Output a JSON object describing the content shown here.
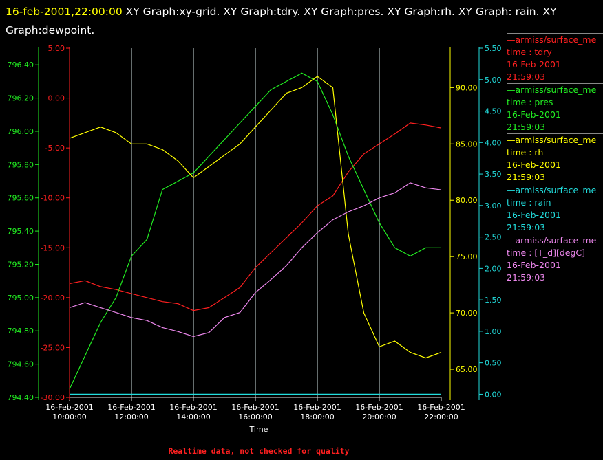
{
  "header": {
    "timestamp": "16-feb-2001,22:00:00",
    "title_rest": " XY Graph:xy-grid.  XY Graph:tdry.  XY Graph:pres.  XY Graph:rh.  XY Graph: rain.  XY Graph:dewpoint."
  },
  "footer": {
    "note": "Realtime data, not checked for quality"
  },
  "colors": {
    "tdry": "#ff2020",
    "pres": "#22ee22",
    "rh": "#ffff00",
    "rain": "#22dddd",
    "dewpoint": "#ee88ee",
    "grid": "#ccdddd"
  },
  "legend": [
    {
      "source": "—armiss/surface_me",
      "var": "time : tdry",
      "date": "16-Feb-2001",
      "time": "21:59:03",
      "color": "#ff2020"
    },
    {
      "source": "—armiss/surface_me",
      "var": "time : pres",
      "date": "16-Feb-2001",
      "time": "21:59:03",
      "color": "#22ee22"
    },
    {
      "source": "—armiss/surface_me",
      "var": "time : rh",
      "date": "16-Feb-2001",
      "time": "21:59:03",
      "color": "#ffff00"
    },
    {
      "source": "—armiss/surface_me",
      "var": "time : rain",
      "date": "16-Feb-2001",
      "time": "21:59:03",
      "color": "#22dddd"
    },
    {
      "source": "—armiss/surface_me",
      "var": "time : [T_d][degC]",
      "date": "16-Feb-2001",
      "time": "21:59:03",
      "color": "#ee88ee"
    }
  ],
  "chart_data": {
    "type": "line",
    "xlabel": "Time",
    "xlim": [
      "16-Feb-2001 10:00:00",
      "16-Feb-2001 22:00:00"
    ],
    "x_tick_labels": [
      [
        "16-Feb-2001",
        "10:00:00"
      ],
      [
        "16-Feb-2001",
        "12:00:00"
      ],
      [
        "16-Feb-2001",
        "14:00:00"
      ],
      [
        "16-Feb-2001",
        "16:00:00"
      ],
      [
        "16-Feb-2001",
        "18:00:00"
      ],
      [
        "16-Feb-2001",
        "20:00:00"
      ],
      [
        "16-Feb-2001",
        "22:00:00"
      ]
    ],
    "x_hours": [
      10,
      12,
      14,
      16,
      18,
      20,
      22
    ],
    "grid": true,
    "axes": {
      "tdry": {
        "ylim": [
          -30,
          5
        ],
        "ticks": [
          "5.00",
          "0.00",
          "-5.00",
          "-10.00",
          "-15.00",
          "-20.00",
          "-25.00",
          "-30.00"
        ]
      },
      "pres": {
        "ylim": [
          794.4,
          796.5
        ],
        "ticks": [
          "796.40",
          "796.20",
          "796.00",
          "795.80",
          "795.60",
          "795.40",
          "795.20",
          "795.00",
          "794.80",
          "794.60",
          "794.40"
        ]
      },
      "rh": {
        "ylim": [
          62.5,
          93.5
        ],
        "ticks": [
          "90.00",
          "85.00",
          "80.00",
          "75.00",
          "70.00",
          "65.00"
        ]
      },
      "rain": {
        "ylim": [
          -0.05,
          5.5
        ],
        "ticks": [
          "5.50",
          "5.00",
          "4.50",
          "4.00",
          "3.50",
          "3.00",
          "2.50",
          "2.00",
          "1.50",
          "1.00",
          "0.50",
          "0.00"
        ]
      }
    },
    "series": [
      {
        "key": "tdry",
        "axis": "tdry",
        "x": [
          "10:00",
          "10:30",
          "11:00",
          "11:30",
          "12:00",
          "12:30",
          "13:00",
          "13:30",
          "14:00",
          "14:30",
          "15:00",
          "15:30",
          "16:00",
          "16:30",
          "17:00",
          "17:30",
          "18:00",
          "18:30",
          "19:00",
          "19:30",
          "20:00",
          "20:30",
          "21:00",
          "21:30",
          "22:00"
        ],
        "values": [
          -18.6,
          -18.3,
          -18.9,
          -19.2,
          -19.6,
          -20.0,
          -20.4,
          -20.6,
          -21.3,
          -21.0,
          -20.0,
          -19.0,
          -17.0,
          -15.5,
          -14.0,
          -12.5,
          -10.8,
          -9.8,
          -7.4,
          -5.6,
          -4.6,
          -3.6,
          -2.5,
          -2.7,
          -3.0
        ]
      },
      {
        "key": "pres",
        "axis": "pres",
        "x": [
          "10:00",
          "10:30",
          "11:00",
          "11:30",
          "12:00",
          "12:30",
          "13:00",
          "13:30",
          "14:00",
          "14:30",
          "15:00",
          "15:30",
          "16:00",
          "16:30",
          "17:00",
          "17:30",
          "18:00",
          "18:30",
          "19:00",
          "19:30",
          "20:00",
          "20:30",
          "21:00",
          "21:30",
          "22:00"
        ],
        "values": [
          794.45,
          794.65,
          794.85,
          795.0,
          795.25,
          795.35,
          795.65,
          795.7,
          795.75,
          795.85,
          795.95,
          796.05,
          796.15,
          796.25,
          796.3,
          796.35,
          796.3,
          796.1,
          795.85,
          795.65,
          795.45,
          795.3,
          795.25,
          795.3,
          795.3
        ]
      },
      {
        "key": "rh",
        "axis": "rh",
        "x": [
          "10:00",
          "10:30",
          "11:00",
          "11:30",
          "12:00",
          "12:30",
          "13:00",
          "13:30",
          "14:00",
          "14:30",
          "15:00",
          "15:30",
          "16:00",
          "16:30",
          "17:00",
          "17:30",
          "18:00",
          "18:30",
          "19:00",
          "19:30",
          "20:00",
          "20:30",
          "21:00",
          "21:30",
          "22:00"
        ],
        "values": [
          85.5,
          86.0,
          86.5,
          86.0,
          85.0,
          85.0,
          84.5,
          83.5,
          82.0,
          83.0,
          84.0,
          85.0,
          86.5,
          88.0,
          89.5,
          90.0,
          91.0,
          90.0,
          77.0,
          70.0,
          67.0,
          67.5,
          66.5,
          66.0,
          66.5
        ]
      },
      {
        "key": "rain",
        "axis": "rain",
        "x": [
          "10:00",
          "22:00"
        ],
        "values": [
          0.0,
          0.0
        ]
      },
      {
        "key": "dewpoint",
        "axis": "tdry",
        "x": [
          "10:00",
          "10:30",
          "11:00",
          "11:30",
          "12:00",
          "12:30",
          "13:00",
          "13:30",
          "14:00",
          "14:30",
          "15:00",
          "15:30",
          "16:00",
          "16:30",
          "17:00",
          "17:30",
          "18:00",
          "18:30",
          "19:00",
          "19:30",
          "20:00",
          "20:30",
          "21:00",
          "21:30",
          "22:00"
        ],
        "values": [
          -21.0,
          -20.5,
          -21.0,
          -21.5,
          -22.0,
          -22.3,
          -23.0,
          -23.4,
          -23.9,
          -23.5,
          -22.0,
          -21.5,
          -19.5,
          -18.2,
          -16.8,
          -15.0,
          -13.5,
          -12.2,
          -11.4,
          -10.8,
          -10.0,
          -9.5,
          -8.5,
          -9.0,
          -9.2
        ]
      }
    ]
  }
}
